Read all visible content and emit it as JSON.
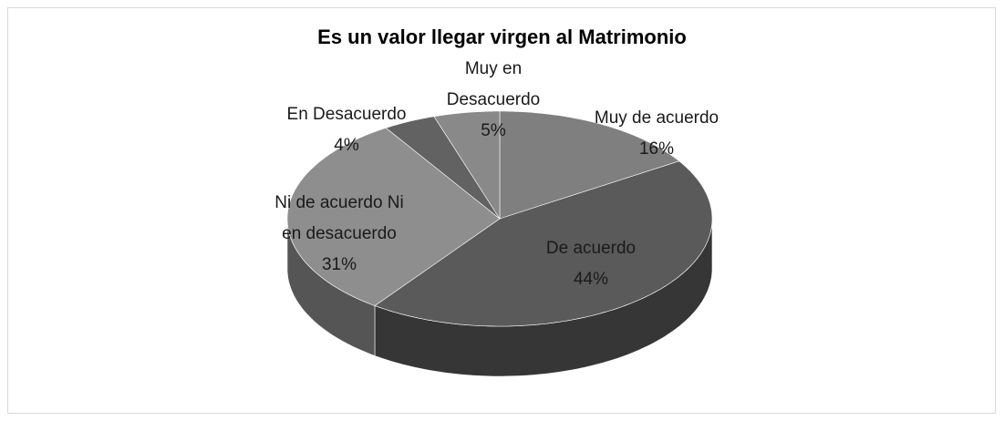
{
  "chart_data": {
    "type": "pie",
    "title": "Es un valor llegar virgen al Matrimonio",
    "categories": [
      "Muy de acuerdo",
      "De acuerdo",
      "Ni de acuerdo Ni en desacuerdo",
      "En Desacuerdo",
      "Muy en Desacuerdo"
    ],
    "values": [
      16,
      44,
      31,
      4,
      5
    ],
    "value_labels": [
      "16%",
      "44%",
      "31%",
      "4%",
      "5%"
    ],
    "colors": [
      "#7f7f7f",
      "#5a5a5a",
      "#8e8e8e",
      "#626262",
      "#898989"
    ]
  }
}
